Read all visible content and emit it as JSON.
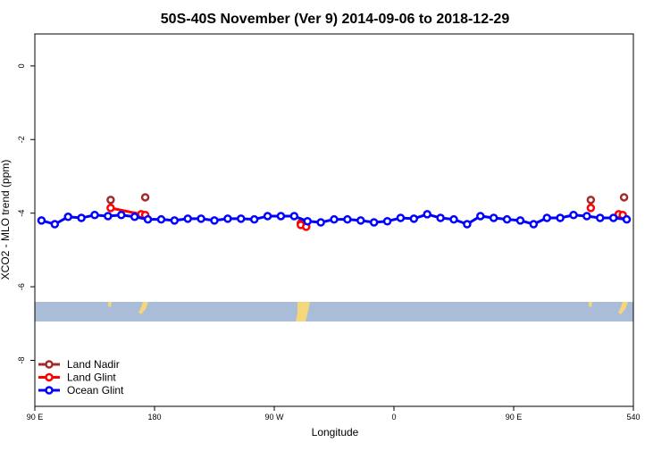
{
  "chart_data": {
    "type": "line",
    "title": "50S-40S November (Ver 9)   2014-09-06 to 2018-12-29",
    "x_label": "Longitude",
    "y_label": "XCO2 - MLO trend (ppm)",
    "xlim": [
      90,
      540
    ],
    "ylim": [
      -9.25,
      0.87
    ],
    "xticks": [
      {
        "value": 90,
        "label": "90 E"
      },
      180,
      {
        "value": 270,
        "label": "90 W"
      },
      {
        "value": 360,
        "label": "0"
      },
      {
        "value": 450,
        "label": "90 E"
      },
      540
    ],
    "yticks": [
      0,
      -2,
      -4,
      -6,
      -8
    ],
    "legend": "bottom-left",
    "series": [
      {
        "name": "Land Nadir",
        "color": "#a52a2a",
        "x": [
          147,
          null,
          173,
          null,
          290,
          null,
          508,
          null,
          533
        ],
        "values": [
          -3.64,
          null,
          -3.57,
          null,
          -4.27,
          null,
          -3.64,
          null,
          -3.57
        ]
      },
      {
        "name": "Land Glint",
        "color": "#ff0000",
        "x": [
          147,
          170,
          173,
          null,
          290,
          294,
          null,
          508,
          null,
          529,
          532
        ],
        "values": [
          -3.86,
          -4.03,
          -4.05,
          null,
          -4.32,
          -4.37,
          null,
          -3.86,
          null,
          -4.03,
          -4.05
        ]
      },
      {
        "name": "Ocean Glint",
        "color": "#0000ff",
        "x": [
          95,
          105,
          115,
          125,
          135,
          145,
          155,
          165,
          175,
          185,
          195,
          205,
          215,
          225,
          235,
          245,
          255,
          265,
          275,
          285,
          295,
          305,
          315,
          325,
          335,
          345,
          355,
          365,
          375,
          385,
          395,
          405,
          415,
          425,
          435,
          445,
          455,
          465,
          475,
          485,
          495,
          505,
          515,
          525,
          535
        ],
        "values": [
          -4.2,
          -4.3,
          -4.1,
          -4.13,
          -4.05,
          -4.08,
          -4.05,
          -4.1,
          -4.17,
          -4.17,
          -4.2,
          -4.15,
          -4.15,
          -4.2,
          -4.15,
          -4.15,
          -4.17,
          -4.08,
          -4.08,
          -4.08,
          -4.22,
          -4.25,
          -4.17,
          -4.17,
          -4.2,
          -4.25,
          -4.22,
          -4.13,
          -4.15,
          -4.03,
          -4.13,
          -4.17,
          -4.3,
          -4.08,
          -4.13,
          -4.17,
          -4.2,
          -4.3,
          -4.13,
          -4.13,
          -4.05,
          -4.08,
          -4.13,
          -4.13,
          -4.17
        ]
      }
    ]
  }
}
